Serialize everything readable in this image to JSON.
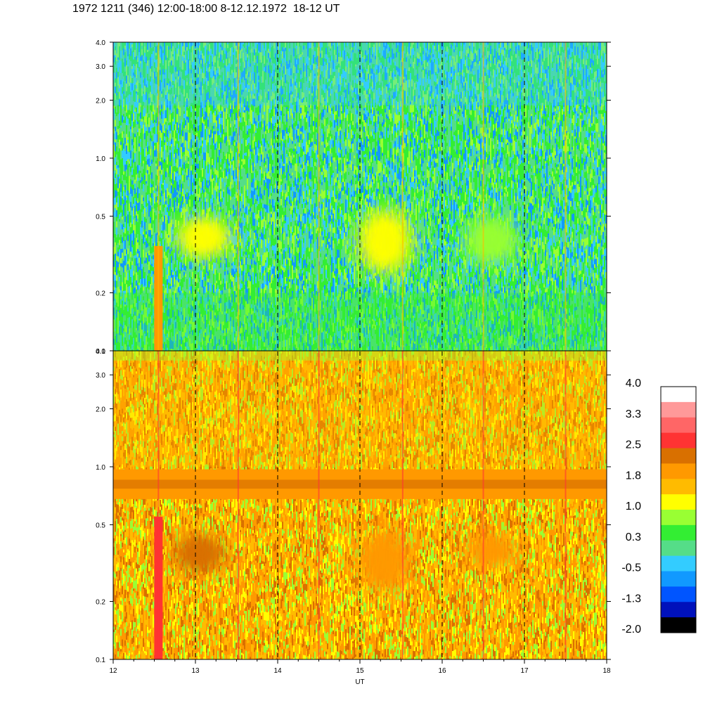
{
  "title": "1972 1211 (346) 12:00-18:00 8-12.12.1972  18-12 UT",
  "chart_data": [
    {
      "type": "heatmap",
      "panel": "top",
      "x_range": [
        12,
        18
      ],
      "y_range": [
        0.1,
        4.0
      ],
      "y_scale": "log",
      "y_ticks": [
        "0.1",
        "0.2",
        "0.5",
        "1.0",
        "2.0",
        "3.0",
        "4.0"
      ],
      "y_tick_values": [
        0.1,
        0.2,
        0.5,
        1.0,
        2.0,
        3.0,
        4.0
      ],
      "dominant_levels": [
        "green",
        "cyan",
        "yellow-green"
      ],
      "features": [
        {
          "x": 12.55,
          "y_low": 0.1,
          "y_high": 0.35,
          "level": 1.8
        },
        {
          "x": 13.1,
          "y_low": 0.3,
          "y_high": 0.5,
          "level": 1.0
        },
        {
          "x": 15.3,
          "y_low": 0.25,
          "y_high": 0.55,
          "level": 1.0
        },
        {
          "x": 16.6,
          "y_low": 0.28,
          "y_high": 0.5,
          "level": 0.7
        }
      ]
    },
    {
      "type": "heatmap",
      "panel": "bottom",
      "x_range": [
        12,
        18
      ],
      "y_range": [
        0.1,
        4.0
      ],
      "y_scale": "log",
      "y_ticks": [
        "0.1",
        "0.2",
        "0.5",
        "1.0",
        "2.0",
        "3.0",
        "4.0"
      ],
      "y_tick_values": [
        0.1,
        0.2,
        0.5,
        1.0,
        2.0,
        3.0,
        4.0
      ],
      "dominant_levels": [
        "orange",
        "yellow"
      ],
      "features": [
        {
          "x_from": 12,
          "x_to": 18,
          "y_low": 0.68,
          "y_high": 0.97,
          "level": 1.9
        },
        {
          "x": 12.55,
          "y_low": 0.1,
          "y_high": 0.55,
          "level": 2.6
        },
        {
          "x": 13.05,
          "y_low": 0.28,
          "y_high": 0.45,
          "level": 2.3
        },
        {
          "x": 15.3,
          "y_low": 0.22,
          "y_high": 0.48,
          "level": 2.0
        },
        {
          "x": 16.6,
          "y_low": 0.3,
          "y_high": 0.45,
          "level": 1.9
        }
      ]
    }
  ],
  "x_axis": {
    "label": "UT",
    "ticks": [
      "12",
      "13",
      "14",
      "15",
      "16",
      "17",
      "18"
    ],
    "tick_values": [
      12,
      13,
      14,
      15,
      16,
      17,
      18
    ],
    "dashed_gridlines": [
      13,
      14,
      15,
      16,
      17
    ]
  },
  "colorbar": {
    "labels": [
      "4.0",
      "3.3",
      "2.5",
      "1.8",
      "1.0",
      "0.3",
      "-0.5",
      "-1.3",
      "-2.0"
    ],
    "colors": [
      "#ffffff",
      "#ff9999",
      "#ff6666",
      "#ff3333",
      "#d97000",
      "#ff9900",
      "#ffbb00",
      "#ffff00",
      "#99ff33",
      "#33ee33",
      "#55dd88",
      "#33ccff",
      "#1199ff",
      "#0055ff",
      "#0011bb",
      "#000000"
    ]
  }
}
